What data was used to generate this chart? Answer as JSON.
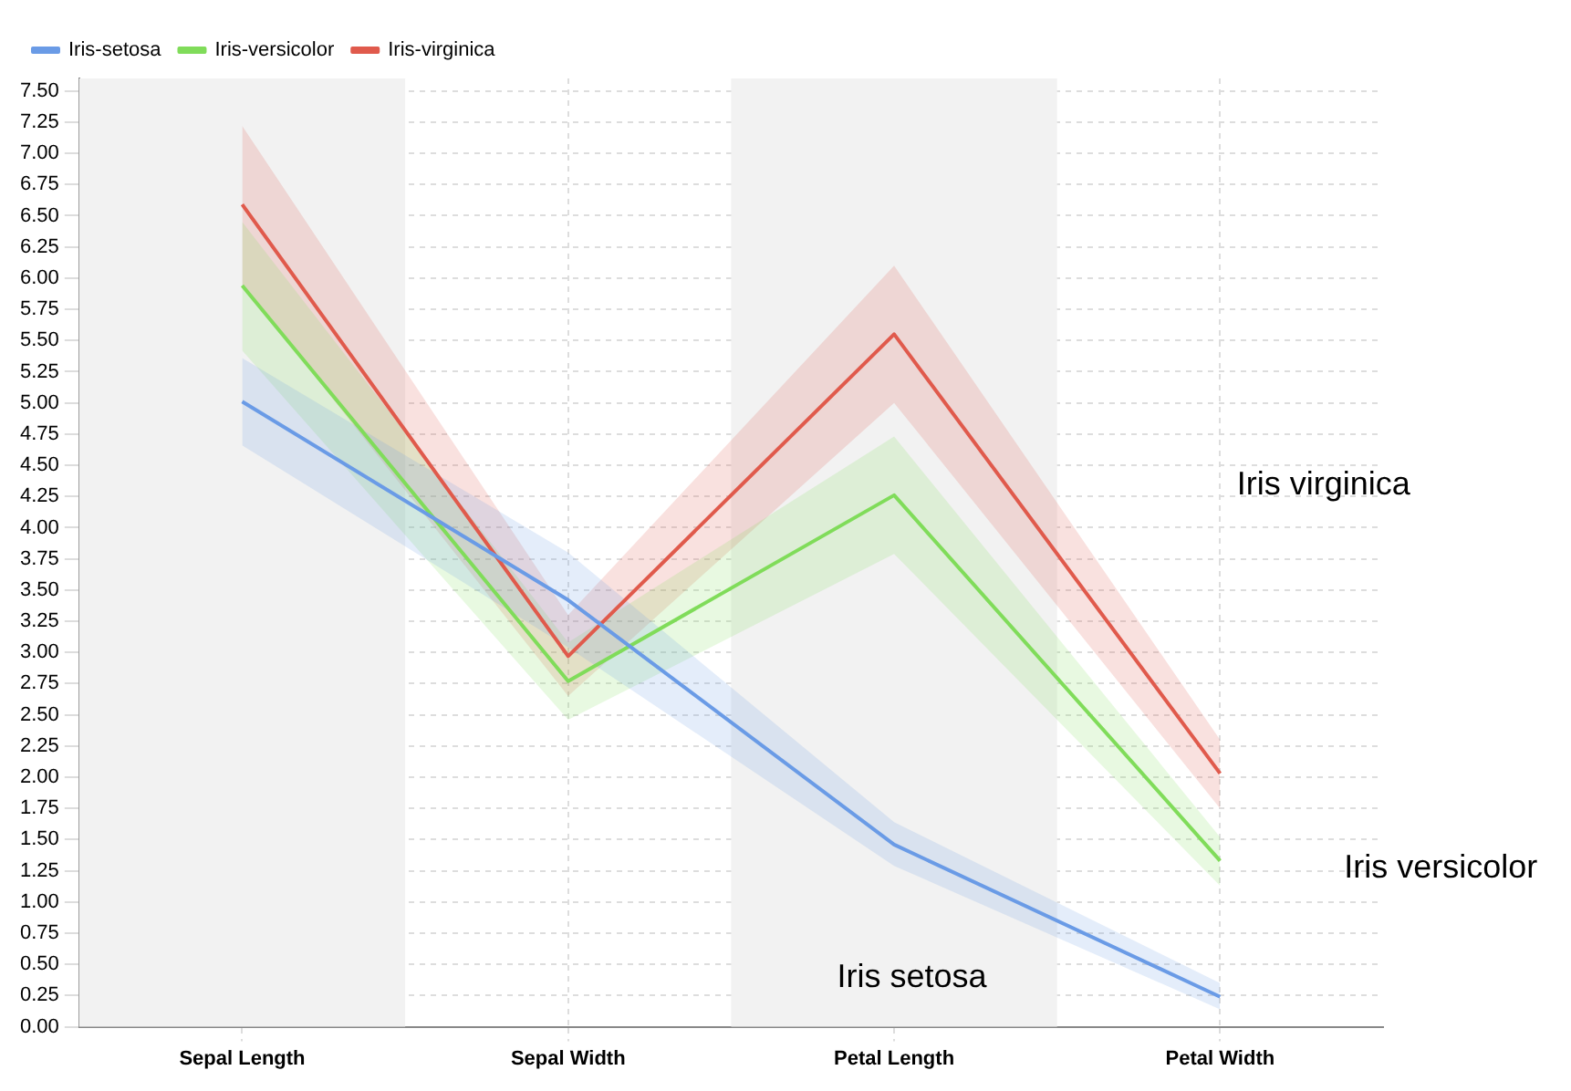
{
  "chart_data": {
    "type": "line",
    "categories": [
      "Sepal Length",
      "Sepal Width",
      "Petal Length",
      "Petal Width"
    ],
    "series": [
      {
        "name": "Iris-setosa",
        "color": "#6a9be6",
        "values": [
          5.01,
          3.42,
          1.46,
          0.24
        ],
        "lower": [
          4.66,
          3.04,
          1.29,
          0.14
        ],
        "upper": [
          5.36,
          3.8,
          1.64,
          0.35
        ]
      },
      {
        "name": "Iris-versicolor",
        "color": "#80dc5a",
        "values": [
          5.94,
          2.77,
          4.26,
          1.33
        ],
        "lower": [
          5.42,
          2.46,
          3.79,
          1.13
        ],
        "upper": [
          6.45,
          3.08,
          4.73,
          1.52
        ]
      },
      {
        "name": "Iris-virginica",
        "color": "#e05a4c",
        "values": [
          6.59,
          2.97,
          5.55,
          2.03
        ],
        "lower": [
          5.95,
          2.65,
          5.0,
          1.75
        ],
        "upper": [
          7.22,
          3.3,
          6.1,
          2.3
        ]
      }
    ],
    "ylim": [
      0,
      7.6
    ],
    "yticks": [
      {
        "value": 0,
        "label": "0.00"
      },
      {
        "value": 0.25,
        "label": "0.25"
      },
      {
        "value": 0.5,
        "label": "0.50"
      },
      {
        "value": 0.75,
        "label": "0.75"
      },
      {
        "value": 1,
        "label": "1.00"
      },
      {
        "value": 1.25,
        "label": "1.25"
      },
      {
        "value": 1.5,
        "label": "1.50"
      },
      {
        "value": 1.75,
        "label": "1.75"
      },
      {
        "value": 2,
        "label": "2.00"
      },
      {
        "value": 2.25,
        "label": "2.25"
      },
      {
        "value": 2.5,
        "label": "2.50"
      },
      {
        "value": 2.75,
        "label": "2.75"
      },
      {
        "value": 3,
        "label": "3.00"
      },
      {
        "value": 3.25,
        "label": "3.25"
      },
      {
        "value": 3.5,
        "label": "3.50"
      },
      {
        "value": 3.75,
        "label": "3.75"
      },
      {
        "value": 4,
        "label": "4.00"
      },
      {
        "value": 4.25,
        "label": "4.25"
      },
      {
        "value": 4.5,
        "label": "4.50"
      },
      {
        "value": 4.75,
        "label": "4.75"
      },
      {
        "value": 5,
        "label": "5.00"
      },
      {
        "value": 5.25,
        "label": "5.25"
      },
      {
        "value": 5.5,
        "label": "5.50"
      },
      {
        "value": 5.75,
        "label": "5.75"
      },
      {
        "value": 6,
        "label": "6.00"
      },
      {
        "value": 6.25,
        "label": "6.25"
      },
      {
        "value": 6.5,
        "label": "6.50"
      },
      {
        "value": 6.75,
        "label": "6.75"
      },
      {
        "value": 7,
        "label": "7.00"
      },
      {
        "value": 7.25,
        "label": "7.25"
      },
      {
        "value": 7.5,
        "label": "7.50"
      }
    ],
    "bands": [
      {
        "axis": "x",
        "from": "Sepal Length",
        "to": "Sepal Length",
        "color": "#f2f2f2"
      },
      {
        "axis": "x",
        "from": "Petal Length",
        "to": "Petal Length",
        "color": "#f2f2f2"
      }
    ],
    "annotations": [
      "Iris virginica",
      "Iris versicolor",
      "Iris setosa"
    ],
    "grid": true,
    "legend": "top left",
    "marker": "none",
    "line_style": "solid"
  }
}
